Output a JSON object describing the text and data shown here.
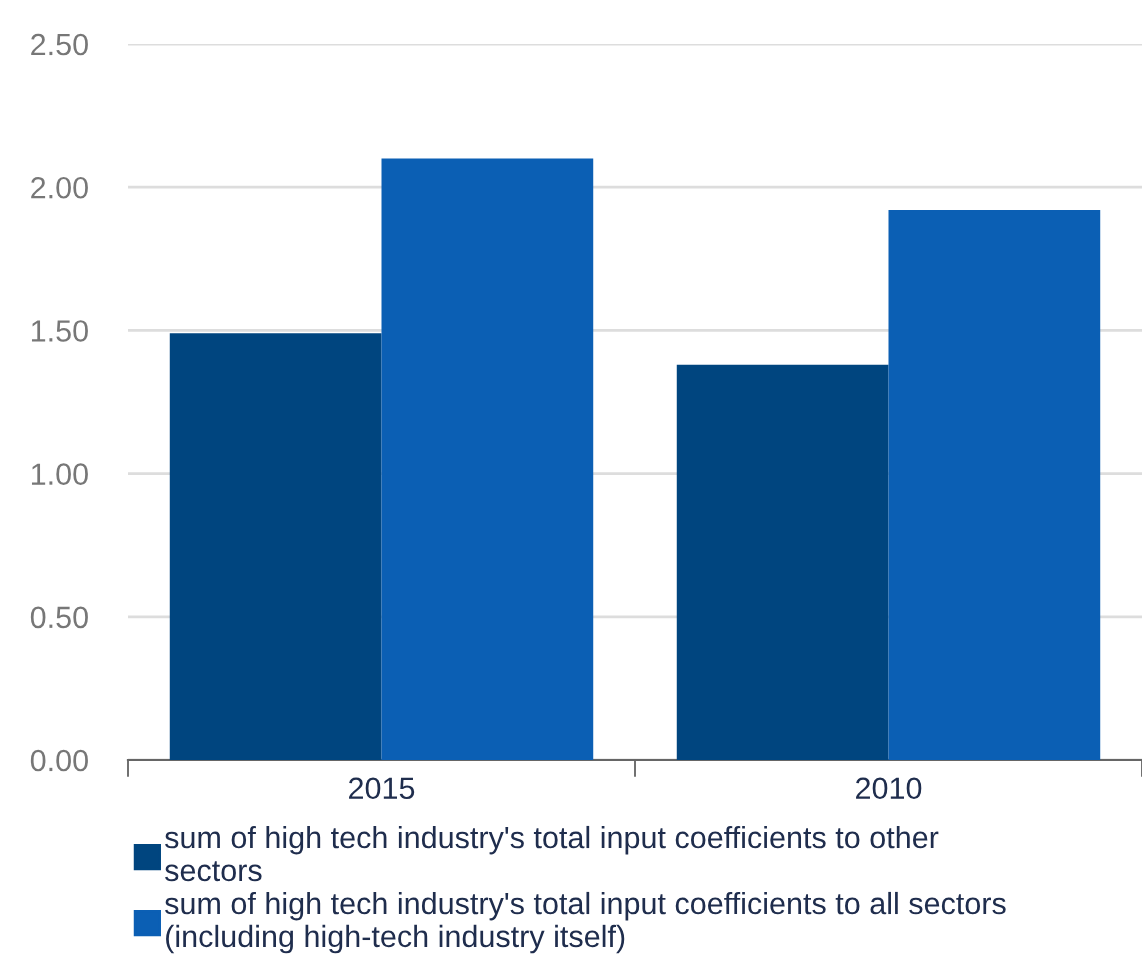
{
  "chart_data": {
    "type": "bar",
    "categories": [
      "2015",
      "2010"
    ],
    "series": [
      {
        "name": "sum of high tech industry's total input coefficients to other sectors",
        "color": "#00457f",
        "values": [
          1.49,
          1.38
        ]
      },
      {
        "name": "sum of high tech industry's total input coefficients to all sectors (including high-tech industry itself)",
        "color": "#0b5fb4",
        "values": [
          2.1,
          1.92
        ]
      }
    ],
    "ylim": [
      0,
      2.5
    ],
    "yticks": [
      {
        "value": 0,
        "label": "0.00"
      },
      {
        "value": 0.5,
        "label": "0.50"
      },
      {
        "value": 1.0,
        "label": "1.00"
      },
      {
        "value": 1.5,
        "label": "1.50"
      },
      {
        "value": 2.0,
        "label": "2.00"
      },
      {
        "value": 2.5,
        "label": "2.50"
      }
    ],
    "grid": "y",
    "legend": "bottom"
  }
}
